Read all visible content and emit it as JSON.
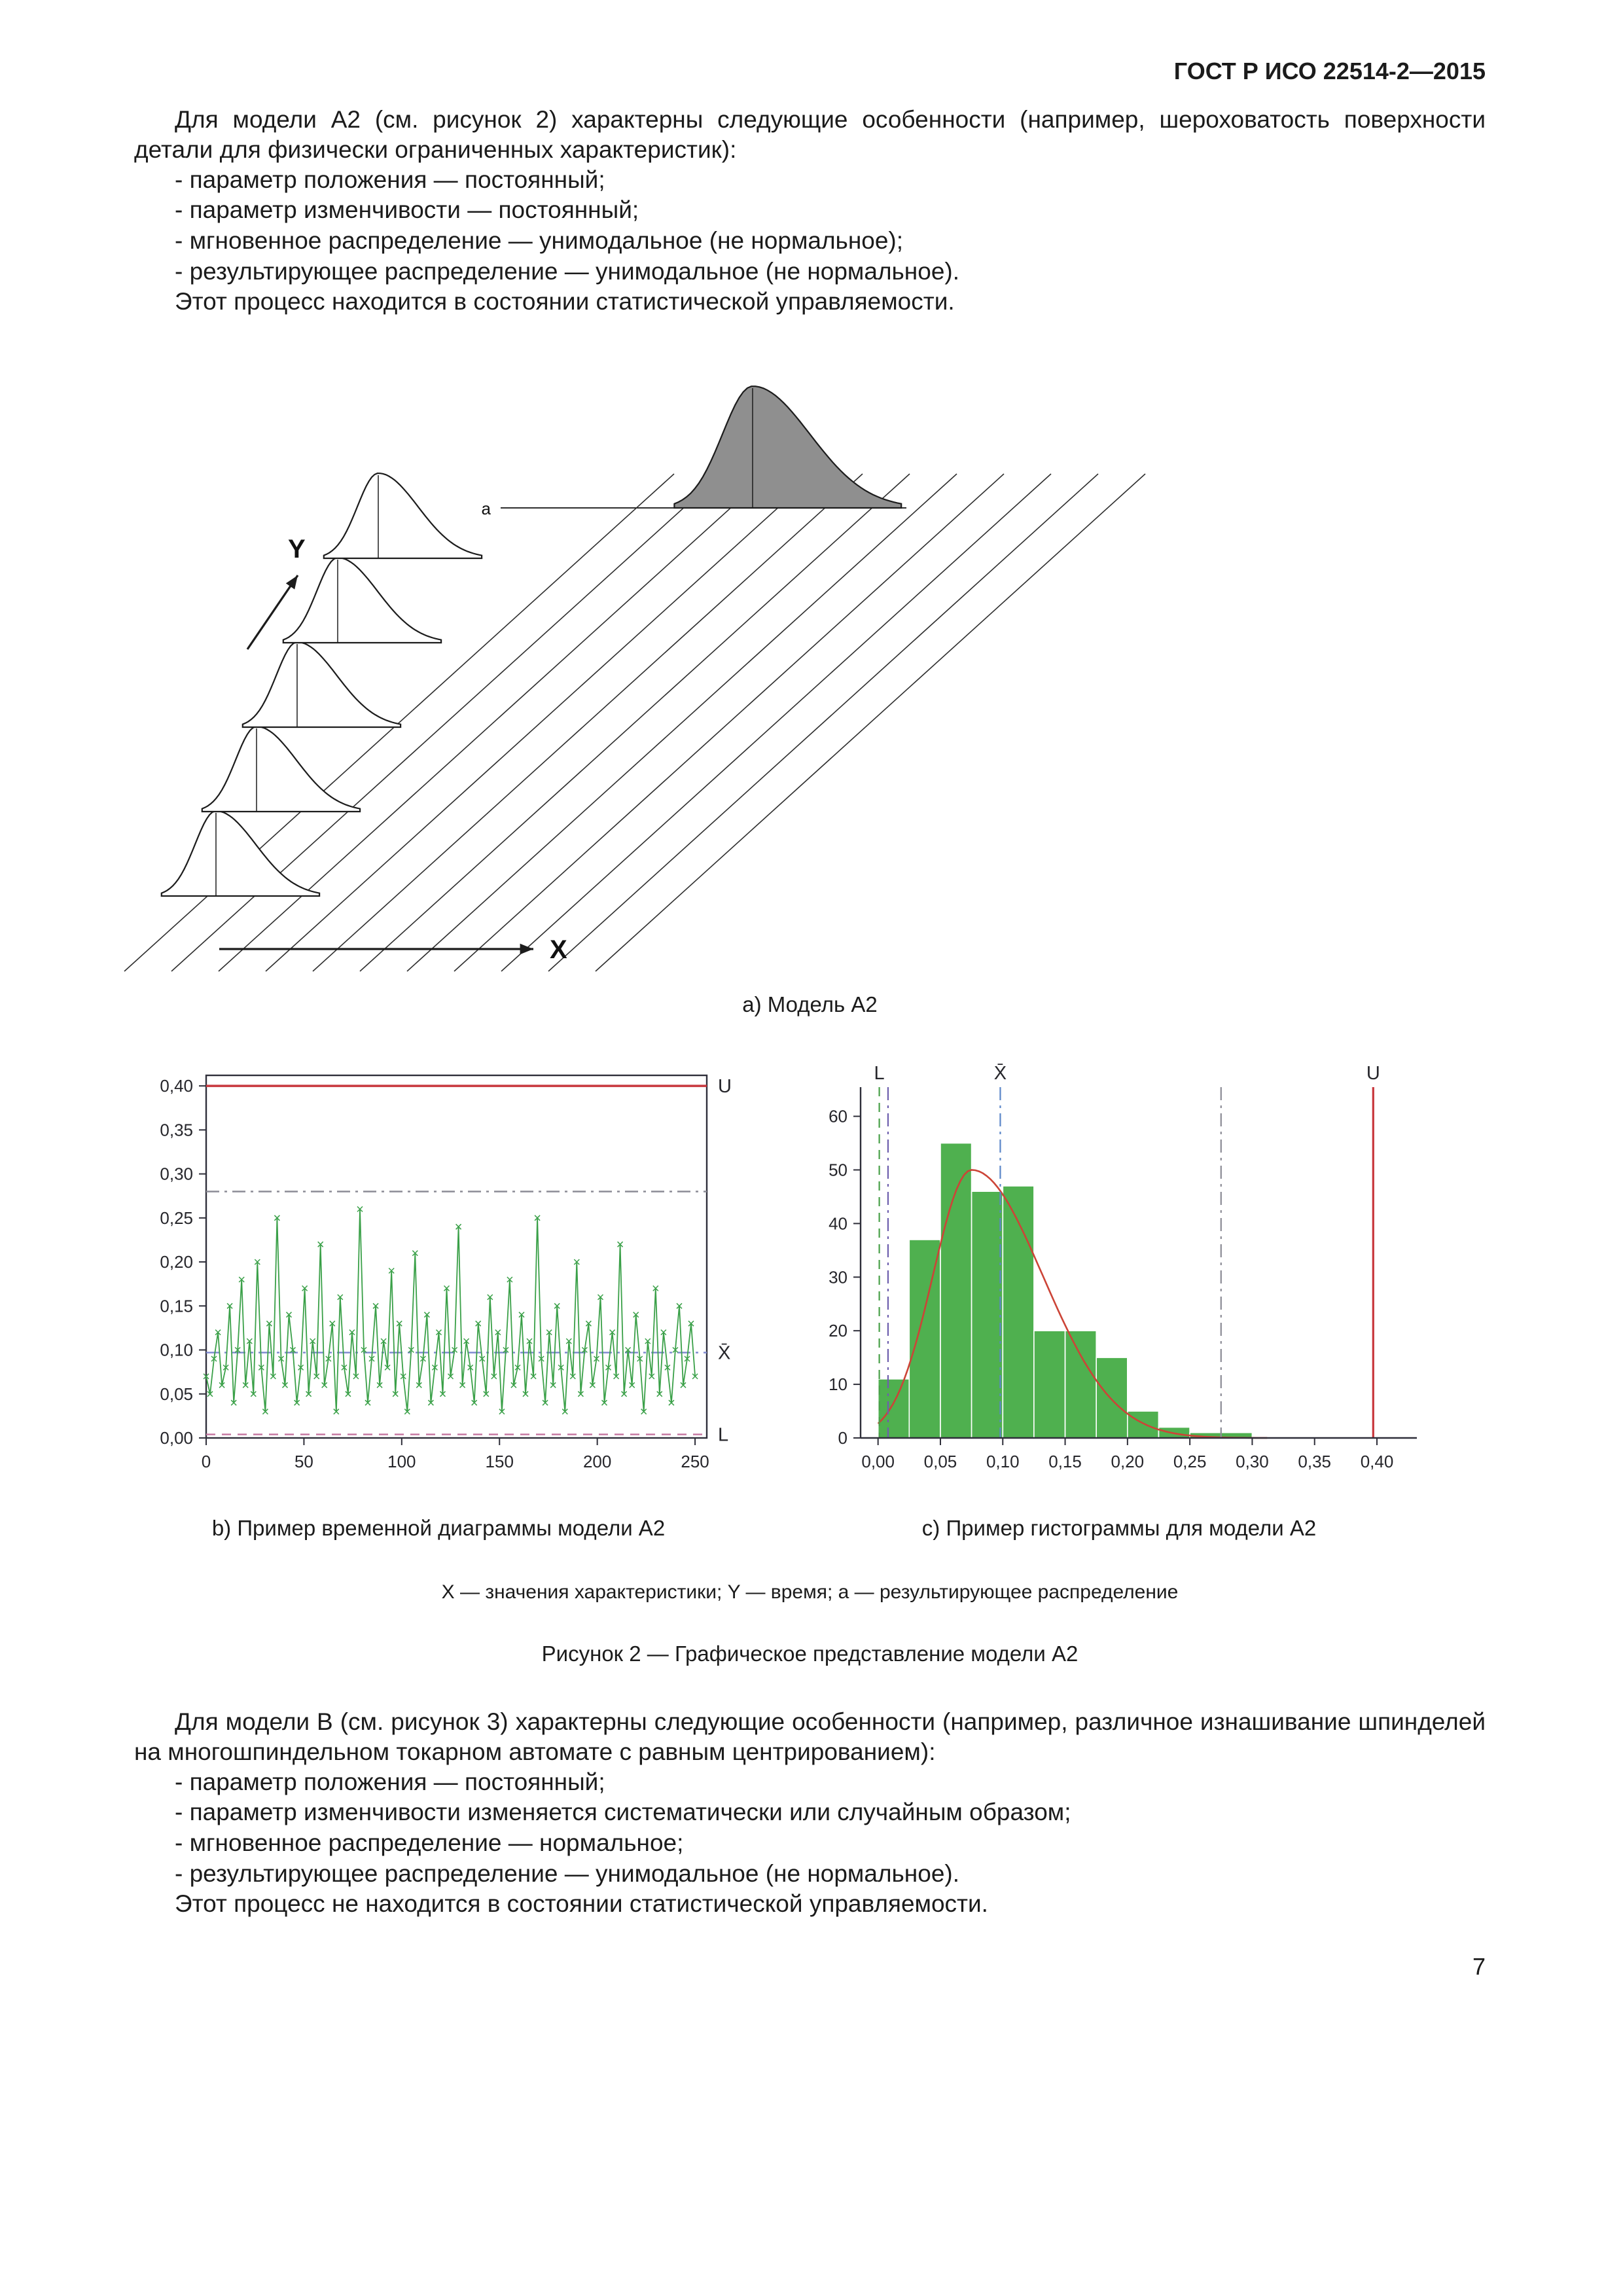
{
  "header": {
    "title": "ГОСТ Р ИСО 22514-2—2015",
    "page_number": "7"
  },
  "section_a2": {
    "intro": "Для модели А2 (см. рисунок 2) характерны следующие особенности (например, шероховатость поверхности детали для физически ограниченных характеристик):",
    "items": [
      "- параметр положения — постоянный;",
      "- параметр изменчивости — постоянный;",
      "- мгновенное распределение — унимодальное (не нормальное);",
      "- результирующее распределение — унимодальное (не нормальное)."
    ],
    "conclusion": "Этот процесс находится в состоянии статистической управляемости."
  },
  "figure2": {
    "caption_a": "а) Модель А2",
    "caption_b": "b) Пример временной диаграммы модели А2",
    "caption_c": "c) Пример гистограммы для модели А2",
    "legend": "X — значения характеристики; Y — время; а — результирующее распределение",
    "title": "Рисунок 2 — Графическое представление модели А2",
    "x_label": "X",
    "y_label": "Y",
    "a_label": "a"
  },
  "chart_data": [
    {
      "type": "line",
      "name": "time-series-model-a2",
      "series_color": "#3aa048",
      "marker": "x",
      "x_max_data": 250,
      "xlim": [
        0,
        256
      ],
      "ylim": [
        0,
        0.412
      ],
      "xticks": {
        "values": [
          0,
          50,
          100,
          150,
          200,
          250
        ],
        "labels": [
          "0",
          "50",
          "100",
          "150",
          "200",
          "250"
        ]
      },
      "yticks": {
        "values": [
          0,
          0.05,
          0.1,
          0.15,
          0.2,
          0.25,
          0.3,
          0.35,
          0.4
        ],
        "labels": [
          "0,00",
          "0,05",
          "0,10",
          "0,15",
          "0,20",
          "0,25",
          "0,30",
          "0,35",
          "0,40"
        ]
      },
      "ref_lines": [
        {
          "label": "U",
          "value": 0.4,
          "color": "#c8373d",
          "style": "solid"
        },
        {
          "label": "",
          "value": 0.28,
          "color": "#8b8b95",
          "style": "dashdot"
        },
        {
          "label": "X̄",
          "value": 0.097,
          "color": "#7b86cf",
          "style": "dashdot"
        },
        {
          "label": "L",
          "value": 0.004,
          "color": "#c77ba4",
          "style": "dash"
        }
      ],
      "values": [
        0.07,
        0.05,
        0.09,
        0.12,
        0.06,
        0.08,
        0.15,
        0.04,
        0.1,
        0.18,
        0.06,
        0.11,
        0.05,
        0.2,
        0.08,
        0.03,
        0.13,
        0.07,
        0.25,
        0.09,
        0.06,
        0.14,
        0.1,
        0.04,
        0.08,
        0.17,
        0.05,
        0.11,
        0.07,
        0.22,
        0.06,
        0.09,
        0.13,
        0.03,
        0.16,
        0.08,
        0.05,
        0.12,
        0.07,
        0.26,
        0.1,
        0.04,
        0.09,
        0.15,
        0.06,
        0.11,
        0.08,
        0.19,
        0.05,
        0.13,
        0.07,
        0.03,
        0.1,
        0.21,
        0.06,
        0.09,
        0.14,
        0.04,
        0.08,
        0.12,
        0.05,
        0.17,
        0.07,
        0.1,
        0.24,
        0.06,
        0.11,
        0.08,
        0.04,
        0.13,
        0.09,
        0.05,
        0.16,
        0.07,
        0.12,
        0.03,
        0.1,
        0.18,
        0.06,
        0.08,
        0.14,
        0.05,
        0.11,
        0.07,
        0.25,
        0.09,
        0.04,
        0.12,
        0.06,
        0.15,
        0.08,
        0.03,
        0.11,
        0.07,
        0.2,
        0.05,
        0.1,
        0.13,
        0.06,
        0.09,
        0.16,
        0.04,
        0.08,
        0.12,
        0.07,
        0.22,
        0.05,
        0.1,
        0.06,
        0.14,
        0.09,
        0.03,
        0.11,
        0.07,
        0.17,
        0.05,
        0.12,
        0.08,
        0.04,
        0.1,
        0.15,
        0.06,
        0.09,
        0.13,
        0.07
      ]
    },
    {
      "type": "bar",
      "name": "histogram-model-a2",
      "bar_color": "#4fb04f",
      "bin_start": 0,
      "bin_width": 0.025,
      "counts": [
        11,
        37,
        55,
        46,
        47,
        20,
        20,
        15,
        5,
        2,
        1,
        1
      ],
      "xlim": [
        -0.014,
        0.432
      ],
      "ylim": [
        0,
        63
      ],
      "xticks": {
        "values": [
          0,
          0.05,
          0.1,
          0.15,
          0.2,
          0.25,
          0.3,
          0.35,
          0.4
        ],
        "labels": [
          "0,00",
          "0,05",
          "0,10",
          "0,15",
          "0,20",
          "0,25",
          "0,30",
          "0,35",
          "0,40"
        ]
      },
      "yticks": {
        "values": [
          0,
          10,
          20,
          30,
          40,
          50,
          60
        ],
        "labels": [
          "0",
          "10",
          "20",
          "30",
          "40",
          "50",
          "60"
        ]
      },
      "curve": {
        "color": "#cc4437",
        "peak_x": 0.075,
        "peak_y": 50,
        "sigma_left": 0.031,
        "sigma_right": 0.057
      },
      "ref_lines": [
        {
          "label": "L",
          "value": 0.001,
          "color": "#48a048",
          "style": "dash"
        },
        {
          "label": "",
          "value": 0.008,
          "color": "#6e5fae",
          "style": "dashdot"
        },
        {
          "label": "X̄",
          "value": 0.098,
          "color": "#5b86c8",
          "style": "dashdot"
        },
        {
          "label": "",
          "value": 0.275,
          "color": "#8b8b95",
          "style": "dashdot"
        },
        {
          "label": "U",
          "value": 0.397,
          "color": "#c8373d",
          "style": "solid"
        }
      ]
    }
  ],
  "section_b": {
    "intro": "Для модели В (см. рисунок 3) характерны следующие особенности (например, различное изнашивание шпинделей на многошпиндельном токарном автомате с равным центрированием):",
    "items": [
      "- параметр положения — постоянный;",
      "- параметр изменчивости изменяется систематически или случайным образом;",
      "- мгновенное распределение — нормальное;",
      "- результирующее распределение — унимодальное (не нормальное)."
    ],
    "conclusion": "Этот процесс не находится в состоянии статистической управляемости."
  }
}
